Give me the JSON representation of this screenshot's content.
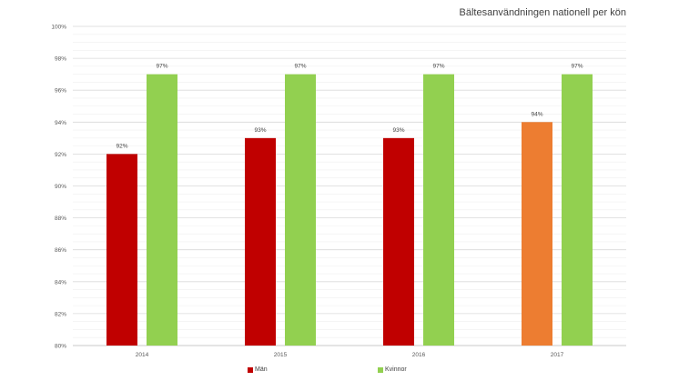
{
  "chart_data": {
    "type": "bar",
    "title": "Bältesanvändningen nationell per kön",
    "xlabel": "",
    "ylabel": "",
    "categories": [
      "2014",
      "2015",
      "2016",
      "2017"
    ],
    "series": [
      {
        "name": "Män",
        "values": [
          92,
          93,
          93,
          94
        ],
        "value_labels": [
          "92%",
          "93%",
          "93%",
          "94%"
        ],
        "colors": [
          "#c00000",
          "#c00000",
          "#c00000",
          "#ed7d31"
        ]
      },
      {
        "name": "Kvinnor",
        "values": [
          97,
          97,
          97,
          97
        ],
        "value_labels": [
          "97%",
          "97%",
          "97%",
          "97%"
        ],
        "colors": [
          "#92d050",
          "#92d050",
          "#92d050",
          "#92d050"
        ]
      }
    ],
    "ylim": [
      80,
      100
    ],
    "yticks": [
      80,
      82,
      84,
      86,
      88,
      90,
      92,
      94,
      96,
      98,
      100
    ],
    "ytick_labels": [
      "80%",
      "82%",
      "84%",
      "86%",
      "88%",
      "90%",
      "92%",
      "94%",
      "96%",
      "98%",
      "100%"
    ],
    "grid": true,
    "legend_position": "bottom",
    "colors": {
      "men": "#c00000",
      "women": "#92d050",
      "highlight": "#ed7d31"
    }
  }
}
